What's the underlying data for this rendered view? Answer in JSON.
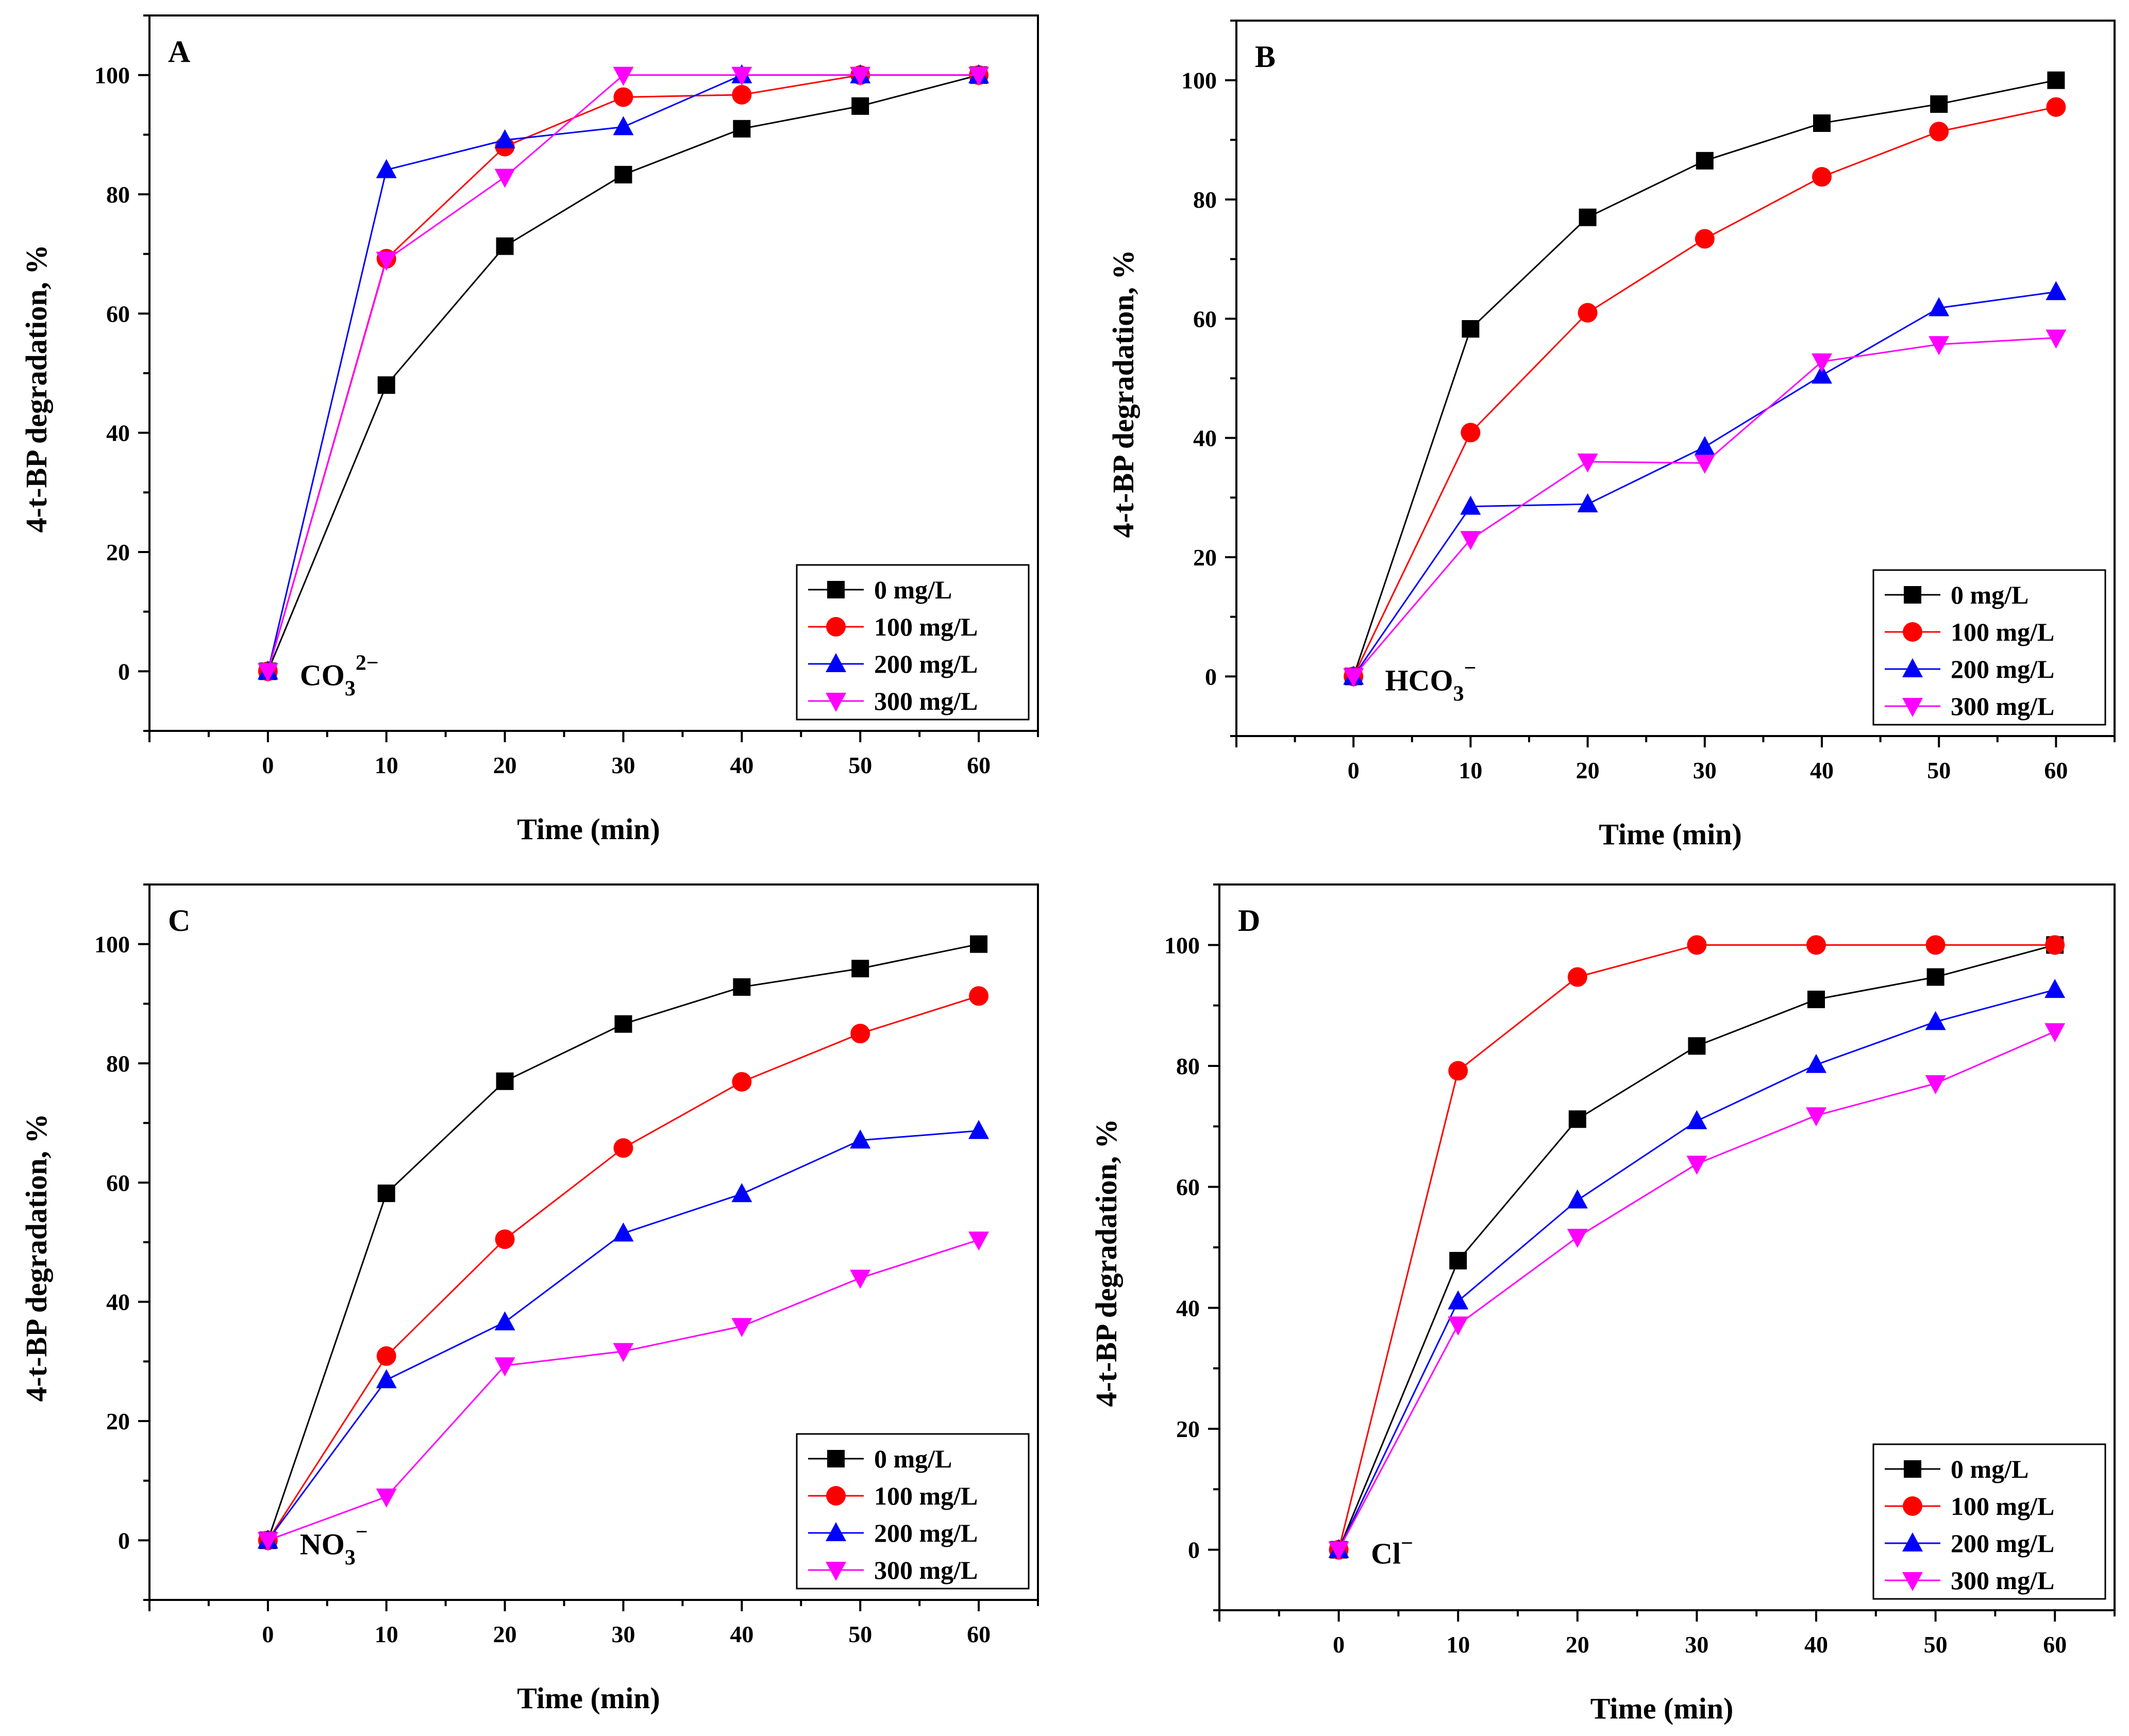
{
  "figure": {
    "panels": [
      {
        "letter": "A",
        "ion": {
          "base": "CO",
          "sub": "3",
          "sup": "2−"
        }
      },
      {
        "letter": "B",
        "ion": {
          "base": "HCO",
          "sub": "3",
          "sup": "−"
        }
      },
      {
        "letter": "C",
        "ion": {
          "base": "NO",
          "sub": "3",
          "sup": "−"
        }
      },
      {
        "letter": "D",
        "ion": {
          "base": "Cl",
          "sub": "",
          "sup": "−"
        }
      }
    ]
  },
  "series_styles": [
    {
      "name": "0 mg/L",
      "color": "#000000",
      "marker": "square"
    },
    {
      "name": "100 mg/L",
      "color": "#ff0000",
      "marker": "circle"
    },
    {
      "name": "200 mg/L",
      "color": "#0000ff",
      "marker": "triangle-up"
    },
    {
      "name": "300 mg/L",
      "color": "#ff00ff",
      "marker": "triangle-down"
    }
  ],
  "chart_data": [
    {
      "type": "line",
      "panel": "A",
      "xlabel": "Time (min)",
      "ylabel": "4-t-BP degradation, %",
      "xlim": [
        -10,
        65
      ],
      "ylim": [
        -10,
        110
      ],
      "xticks": [
        0,
        10,
        20,
        30,
        40,
        50,
        60
      ],
      "yticks": [
        0,
        20,
        40,
        60,
        80,
        100
      ],
      "x": [
        0,
        10,
        20,
        30,
        40,
        50,
        60
      ],
      "legend_position": "bottom-right",
      "series": [
        {
          "name": "0 mg/L",
          "values": [
            0,
            48,
            71.3,
            83.3,
            91,
            94.8,
            100
          ]
        },
        {
          "name": "100 mg/L",
          "values": [
            0,
            69.2,
            88,
            96.3,
            96.7,
            100,
            100
          ]
        },
        {
          "name": "200 mg/L",
          "values": [
            0,
            84.1,
            89.1,
            91.3,
            100,
            100,
            100
          ]
        },
        {
          "name": "300 mg/L",
          "values": [
            0,
            69,
            82.9,
            100,
            100,
            100,
            100
          ]
        }
      ]
    },
    {
      "type": "line",
      "panel": "B",
      "xlabel": "Time (min)",
      "ylabel": "4-t-BP degradation, %",
      "xlim": [
        -10,
        65
      ],
      "ylim": [
        -10,
        110
      ],
      "xticks": [
        0,
        10,
        20,
        30,
        40,
        50,
        60
      ],
      "yticks": [
        0,
        20,
        40,
        60,
        80,
        100
      ],
      "x": [
        0,
        10,
        20,
        30,
        40,
        50,
        60
      ],
      "legend_position": "bottom-right",
      "series": [
        {
          "name": "0 mg/L",
          "values": [
            0,
            58.3,
            77,
            86.5,
            92.8,
            96,
            100
          ]
        },
        {
          "name": "100 mg/L",
          "values": [
            0,
            40.9,
            61,
            73.4,
            83.8,
            91.4,
            95.5
          ]
        },
        {
          "name": "200 mg/L",
          "values": [
            0,
            28.5,
            28.9,
            38.5,
            50.5,
            61.8,
            64.5
          ]
        },
        {
          "name": "300 mg/L",
          "values": [
            0,
            23,
            36,
            35.8,
            52.8,
            55.7,
            56.8
          ]
        }
      ]
    },
    {
      "type": "line",
      "panel": "C",
      "xlabel": "Time (min)",
      "ylabel": "4-t-BP degradation, %",
      "xlim": [
        -10,
        65
      ],
      "ylim": [
        -10,
        110
      ],
      "xticks": [
        0,
        10,
        20,
        30,
        40,
        50,
        60
      ],
      "yticks": [
        0,
        20,
        40,
        60,
        80,
        100
      ],
      "x": [
        0,
        10,
        20,
        30,
        40,
        50,
        60
      ],
      "legend_position": "bottom-right",
      "series": [
        {
          "name": "0 mg/L",
          "values": [
            0,
            58.2,
            77,
            86.6,
            92.8,
            95.9,
            100
          ]
        },
        {
          "name": "100 mg/L",
          "values": [
            0,
            30.9,
            50.5,
            65.8,
            76.9,
            85,
            91.3
          ]
        },
        {
          "name": "200 mg/L",
          "values": [
            0,
            26.9,
            36.6,
            51.5,
            58.1,
            67.1,
            68.7
          ]
        },
        {
          "name": "300 mg/L",
          "values": [
            0,
            7.3,
            29.3,
            31.7,
            35.9,
            44,
            50.4
          ]
        }
      ]
    },
    {
      "type": "line",
      "panel": "D",
      "xlabel": "Time (min)",
      "ylabel": "4-t-BP degradation, %",
      "xlim": [
        -10,
        65
      ],
      "ylim": [
        -10,
        110
      ],
      "xticks": [
        0,
        10,
        20,
        30,
        40,
        50,
        60
      ],
      "yticks": [
        0,
        20,
        40,
        60,
        80,
        100
      ],
      "x": [
        0,
        10,
        20,
        30,
        40,
        50,
        60
      ],
      "legend_position": "bottom-right",
      "series": [
        {
          "name": "0 mg/L",
          "values": [
            0,
            47.8,
            71.2,
            83.3,
            91,
            94.7,
            100
          ]
        },
        {
          "name": "100 mg/L",
          "values": [
            0,
            79.2,
            94.7,
            100,
            100,
            100,
            100
          ]
        },
        {
          "name": "200 mg/L",
          "values": [
            0,
            41.1,
            57.8,
            70.9,
            80.2,
            87.3,
            92.6
          ]
        },
        {
          "name": "300 mg/L",
          "values": [
            0,
            37.2,
            51.7,
            63.8,
            71.8,
            77.1,
            85.7
          ]
        }
      ]
    }
  ]
}
